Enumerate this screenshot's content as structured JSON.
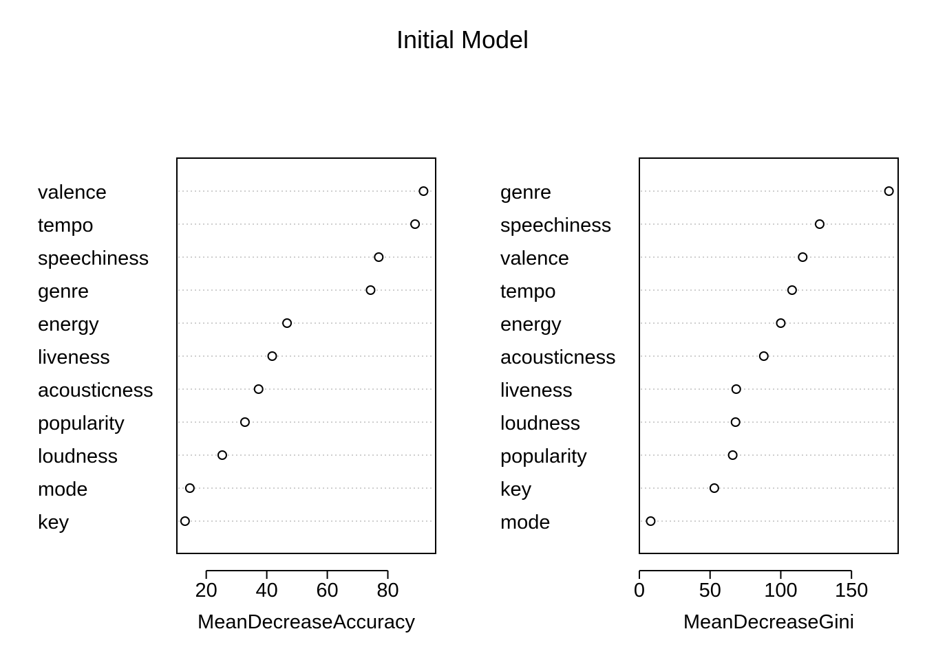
{
  "title": "Initial Model",
  "chart_data": [
    {
      "type": "scatter",
      "xlabel": "MeanDecreaseAccuracy",
      "ylabel": "",
      "xlim": [
        10.3,
        95.8
      ],
      "xticks": [
        20,
        40,
        60,
        80
      ],
      "grid": "dotted horizontal",
      "categories": [
        "valence",
        "tempo",
        "speechiness",
        "genre",
        "energy",
        "liveness",
        "acousticness",
        "popularity",
        "loudness",
        "mode",
        "key"
      ],
      "values": [
        91.8,
        89.0,
        77.0,
        74.3,
        46.7,
        41.8,
        37.3,
        32.8,
        25.3,
        14.6,
        13.0
      ]
    },
    {
      "type": "scatter",
      "xlabel": "MeanDecreaseGini",
      "ylabel": "",
      "xlim": [
        0,
        183
      ],
      "xticks": [
        0,
        50,
        100,
        150
      ],
      "grid": "dotted horizontal",
      "categories": [
        "genre",
        "speechiness",
        "valence",
        "tempo",
        "energy",
        "acousticness",
        "liveness",
        "loudness",
        "popularity",
        "key",
        "mode"
      ],
      "values": [
        176.5,
        127.5,
        115.5,
        108.0,
        100.0,
        88.0,
        68.5,
        68.0,
        66.0,
        53.0,
        8.0
      ]
    }
  ]
}
